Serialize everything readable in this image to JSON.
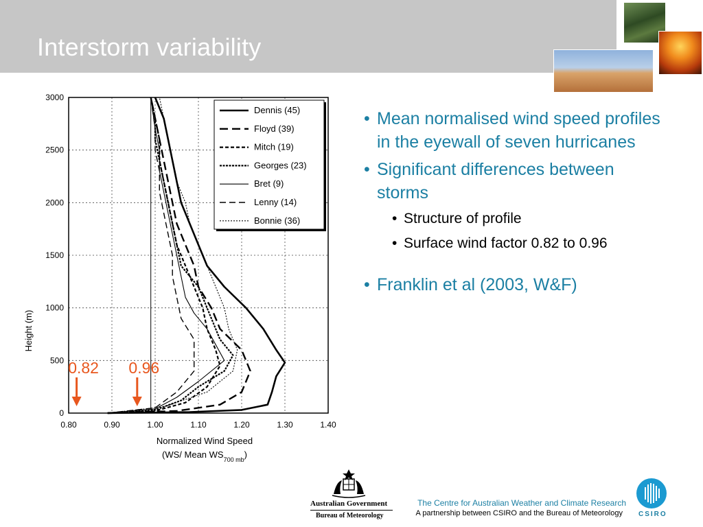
{
  "slide": {
    "title": "Interstorm variability"
  },
  "bullets": {
    "b1": "Mean normalised wind speed profiles in the eyewall of seven hurricanes",
    "b2": "Significant differences between storms",
    "b2a": "Structure of profile",
    "b2b": "Surface wind factor 0.82 to 0.96",
    "b3": "Franklin et al (2003, W&F)"
  },
  "footer": {
    "gov": "Australian Government",
    "bom": "Bureau of Meteorology",
    "centre": "The Centre for Australian Weather and Climate Research",
    "partnership": "A partnership between CSIRO and the Bureau of Meteorology",
    "csiro": "CSIRO"
  },
  "annotations": [
    {
      "label": "0.82",
      "x": 0.82,
      "color": "#e8571e"
    },
    {
      "label": "0.96",
      "x": 0.96,
      "color": "#e8571e"
    }
  ],
  "chart_data": {
    "type": "line",
    "title": "",
    "xlabel": "Normalized Wind Speed",
    "xlabel_line2_prefix": "(WS/ Mean WS",
    "xlabel_line2_sub": "700 mb",
    "xlabel_line2_suffix": ")",
    "ylabel": "Height (m)",
    "xlim": [
      0.8,
      1.4
    ],
    "ylim": [
      0,
      3000
    ],
    "xticks": [
      "0.80",
      "0.90",
      "1.00",
      "1.10",
      "1.20",
      "1.30",
      "1.40"
    ],
    "yticks": [
      "0",
      "500",
      "1000",
      "1500",
      "2000",
      "2500",
      "3000"
    ],
    "grid": true,
    "legend_position": "top-right",
    "series": [
      {
        "name": "Dennis (45)",
        "style": "solid-thick",
        "points": [
          [
            0.89,
            0
          ],
          [
            1.08,
            10
          ],
          [
            1.2,
            30
          ],
          [
            1.26,
            80
          ],
          [
            1.27,
            200
          ],
          [
            1.28,
            350
          ],
          [
            1.3,
            480
          ],
          [
            1.28,
            600
          ],
          [
            1.25,
            800
          ],
          [
            1.21,
            1000
          ],
          [
            1.16,
            1200
          ],
          [
            1.12,
            1400
          ],
          [
            1.1,
            1600
          ],
          [
            1.08,
            1800
          ],
          [
            1.06,
            2000
          ],
          [
            1.05,
            2200
          ],
          [
            1.04,
            2400
          ],
          [
            1.03,
            2600
          ],
          [
            1.02,
            2800
          ],
          [
            1.0,
            3000
          ]
        ]
      },
      {
        "name": "Floyd (39)",
        "style": "long-dash",
        "points": [
          [
            0.89,
            0
          ],
          [
            1.05,
            20
          ],
          [
            1.15,
            80
          ],
          [
            1.2,
            200
          ],
          [
            1.22,
            400
          ],
          [
            1.2,
            600
          ],
          [
            1.15,
            800
          ],
          [
            1.13,
            1000
          ],
          [
            1.1,
            1200
          ],
          [
            1.09,
            1400
          ],
          [
            1.07,
            1600
          ],
          [
            1.05,
            1800
          ],
          [
            1.04,
            2000
          ],
          [
            1.03,
            2200
          ],
          [
            1.02,
            2400
          ],
          [
            1.01,
            2600
          ],
          [
            1.0,
            2800
          ],
          [
            0.99,
            3000
          ]
        ]
      },
      {
        "name": "Mitch (19)",
        "style": "short-dash",
        "points": [
          [
            0.89,
            0
          ],
          [
            1.0,
            20
          ],
          [
            1.07,
            100
          ],
          [
            1.12,
            250
          ],
          [
            1.15,
            450
          ],
          [
            1.14,
            600
          ],
          [
            1.12,
            800
          ],
          [
            1.11,
            1000
          ],
          [
            1.09,
            1200
          ],
          [
            1.07,
            1400
          ],
          [
            1.05,
            1600
          ],
          [
            1.04,
            1800
          ],
          [
            1.03,
            2000
          ],
          [
            1.02,
            2200
          ],
          [
            1.01,
            2400
          ],
          [
            1.01,
            2600
          ],
          [
            1.0,
            2800
          ],
          [
            0.99,
            3000
          ]
        ]
      },
      {
        "name": "Georges (23)",
        "style": "dot-dash",
        "points": [
          [
            0.89,
            0
          ],
          [
            1.0,
            30
          ],
          [
            1.06,
            120
          ],
          [
            1.1,
            250
          ],
          [
            1.16,
            400
          ],
          [
            1.18,
            550
          ],
          [
            1.15,
            700
          ],
          [
            1.13,
            900
          ],
          [
            1.12,
            1000
          ],
          [
            1.1,
            1200
          ],
          [
            1.06,
            1400
          ],
          [
            1.05,
            1600
          ],
          [
            1.04,
            1800
          ],
          [
            1.03,
            2000
          ],
          [
            1.02,
            2200
          ],
          [
            1.01,
            2400
          ],
          [
            1.0,
            2600
          ],
          [
            1.0,
            2800
          ],
          [
            0.99,
            3000
          ]
        ]
      },
      {
        "name": "Bret (9)",
        "style": "solid-thin",
        "points": [
          [
            0.89,
            0
          ],
          [
            1.0,
            40
          ],
          [
            1.05,
            150
          ],
          [
            1.1,
            300
          ],
          [
            1.16,
            500
          ],
          [
            1.14,
            650
          ],
          [
            1.12,
            800
          ],
          [
            1.09,
            950
          ],
          [
            1.07,
            1100
          ],
          [
            1.06,
            1300
          ],
          [
            1.05,
            1500
          ],
          [
            1.04,
            1700
          ],
          [
            1.03,
            1900
          ],
          [
            1.02,
            2100
          ],
          [
            1.01,
            2300
          ],
          [
            1.01,
            2500
          ],
          [
            1.0,
            2700
          ],
          [
            0.99,
            3000
          ]
        ]
      },
      {
        "name": "Lenny (14)",
        "style": "dash",
        "points": [
          [
            0.89,
            0
          ],
          [
            1.0,
            50
          ],
          [
            1.05,
            200
          ],
          [
            1.09,
            400
          ],
          [
            1.09,
            550
          ],
          [
            1.09,
            700
          ],
          [
            1.06,
            900
          ],
          [
            1.05,
            1100
          ],
          [
            1.04,
            1300
          ],
          [
            1.04,
            1500
          ],
          [
            1.03,
            1700
          ],
          [
            1.02,
            1900
          ],
          [
            1.01,
            2100
          ],
          [
            1.01,
            2300
          ],
          [
            1.0,
            2500
          ],
          [
            1.0,
            2700
          ],
          [
            0.99,
            3000
          ]
        ]
      },
      {
        "name": "Bonnie (36)",
        "style": "dotted",
        "points": [
          [
            0.89,
            0
          ],
          [
            1.02,
            60
          ],
          [
            1.12,
            200
          ],
          [
            1.18,
            400
          ],
          [
            1.19,
            600
          ],
          [
            1.17,
            800
          ],
          [
            1.16,
            1000
          ],
          [
            1.14,
            1200
          ],
          [
            1.12,
            1400
          ],
          [
            1.1,
            1600
          ],
          [
            1.08,
            1800
          ],
          [
            1.07,
            2000
          ],
          [
            1.05,
            2200
          ],
          [
            1.04,
            2400
          ],
          [
            1.03,
            2600
          ],
          [
            1.02,
            2800
          ],
          [
            1.01,
            3000
          ]
        ]
      }
    ]
  }
}
